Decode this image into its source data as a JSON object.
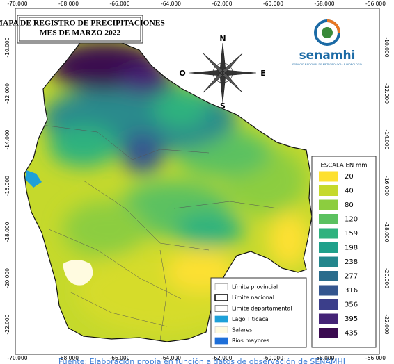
{
  "title": {
    "line1": "MAPA DE REGISTRO DE PRECIPITACIONES",
    "line2": "MES DE MARZO 2022"
  },
  "longitudes": [
    "-70.000",
    "-68.000",
    "-66.000",
    "-64.000",
    "-62.000",
    "-60.000",
    "-58.000",
    "-56.000"
  ],
  "latitudes": [
    "-10.000",
    "-12.000",
    "-14.000",
    "-16.000",
    "-18.000",
    "-20.000",
    "-22.000"
  ],
  "compass": {
    "north": "N",
    "west": "O",
    "east": "E",
    "south": "S"
  },
  "logo": {
    "name": "senamhi",
    "subtitle": "SERVICIO NACIONAL DE METEOROLOGÍA E HIDROLOGÍA"
  },
  "scale": {
    "title": "ESCALA EN mm",
    "items": [
      {
        "value": 20,
        "color": "#fde030"
      },
      {
        "value": 40,
        "color": "#c5d92c"
      },
      {
        "value": 80,
        "color": "#8ccd3f"
      },
      {
        "value": 120,
        "color": "#5bc160"
      },
      {
        "value": 159,
        "color": "#2fb27e"
      },
      {
        "value": 198,
        "color": "#1fa08a"
      },
      {
        "value": 238,
        "color": "#23868c"
      },
      {
        "value": 277,
        "color": "#2a6c8c"
      },
      {
        "value": 316,
        "color": "#34568f"
      },
      {
        "value": 356,
        "color": "#3b3e8a"
      },
      {
        "value": 395,
        "color": "#442376"
      },
      {
        "value": 435,
        "color": "#3a0a50"
      }
    ]
  },
  "layers": [
    {
      "label": "Límite provincial",
      "fill": "#ffffff",
      "stroke": "#999999"
    },
    {
      "label": "Límite nacional",
      "fill": "#ffffff",
      "stroke": "#000000"
    },
    {
      "label": "Límite departamental",
      "fill": "#ffffff",
      "stroke": "#666666"
    },
    {
      "label": "Lago Titicaca",
      "fill": "#1ea0d8",
      "stroke": "#1ea0d8"
    },
    {
      "label": "Salares",
      "fill": "#fffbe0",
      "stroke": "#cccccc"
    },
    {
      "label": "Ríos mayores",
      "fill": "#1e6fd8",
      "stroke": "#1e6fd8"
    }
  ],
  "footer": "Fuente: Elaboración propia en función a datos de observación de SENAMHI"
}
